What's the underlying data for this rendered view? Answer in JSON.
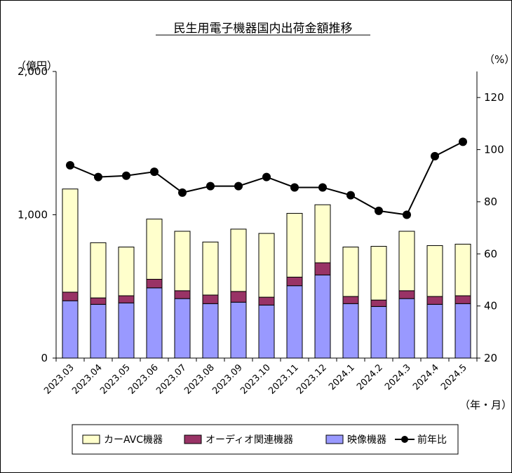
{
  "chart_data": {
    "type": "bar",
    "title": "民生用電子機器国内出荷金額推移",
    "y_left_label": "（億円）",
    "y_right_label": "（%）",
    "x_unit_label": "（年・月）",
    "ylim_left": [
      0,
      2000
    ],
    "ylim_right": [
      20,
      130
    ],
    "y_left_ticks": [
      0,
      1000,
      2000
    ],
    "y_left_tick_labels": [
      "0",
      "1,000",
      "2,000"
    ],
    "y_right_ticks": [
      20,
      40,
      60,
      80,
      100,
      120
    ],
    "y_right_tick_labels": [
      "20",
      "40",
      "60",
      "80",
      "100",
      "120"
    ],
    "categories": [
      "2023.03",
      "2023.04",
      "2023.05",
      "2023.06",
      "2023.07",
      "2023.08",
      "2023.09",
      "2023.10",
      "2023.11",
      "2023.12",
      "2024.1",
      "2024.2",
      "2024.3",
      "2024.4",
      "2024.5"
    ],
    "stacked": true,
    "series": [
      {
        "name": "映像機器",
        "kind": "bar",
        "color": "#9999ff",
        "values": [
          400,
          375,
          385,
          490,
          415,
          380,
          390,
          370,
          505,
          580,
          380,
          360,
          415,
          375,
          380
        ]
      },
      {
        "name": "オーディオ関連機器",
        "kind": "bar",
        "color": "#993366",
        "values": [
          60,
          45,
          50,
          60,
          55,
          60,
          75,
          55,
          60,
          85,
          50,
          45,
          55,
          55,
          55
        ]
      },
      {
        "name": "カーAVC機器",
        "kind": "bar",
        "color": "#ffffcc",
        "values": [
          720,
          385,
          340,
          420,
          415,
          370,
          435,
          445,
          445,
          405,
          345,
          375,
          415,
          355,
          360
        ]
      },
      {
        "name": "前年比",
        "kind": "line",
        "axis": "right",
        "color": "#000000",
        "values": [
          94,
          89.5,
          90,
          91.5,
          83.5,
          86,
          86,
          89.5,
          85.5,
          85.5,
          82.5,
          76.5,
          75,
          97.5,
          103
        ]
      }
    ],
    "legend": {
      "position": "bottom",
      "entries": [
        "カーAVC機器",
        "オーディオ関連機器",
        "映像機器",
        "前年比"
      ]
    },
    "grid": false
  }
}
